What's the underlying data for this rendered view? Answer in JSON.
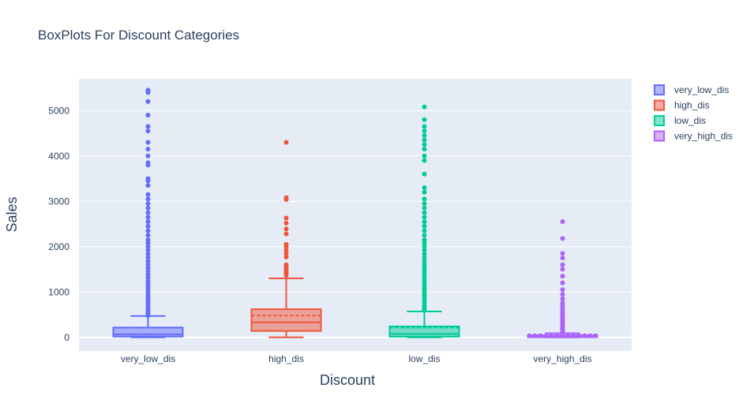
{
  "chart_data": {
    "type": "box",
    "title": "BoxPlots For Discount Categories",
    "xlabel": "Discount",
    "ylabel": "Sales",
    "ylim": [
      -300,
      5700
    ],
    "yticks": [
      0,
      1000,
      2000,
      3000,
      4000,
      5000
    ],
    "ytick_labels": [
      "0",
      "1000",
      "2000",
      "3000",
      "4000",
      "5000"
    ],
    "grid": true,
    "legend_position": "top-right",
    "categories": [
      "very_low_dis",
      "high_dis",
      "low_dis",
      "very_high_dis"
    ],
    "series": [
      {
        "name": "very_low_dis",
        "color": "#636efa",
        "min": 0,
        "q1": 17,
        "median": 65,
        "q3": 215,
        "upper_fence": 470,
        "mean": 215,
        "outliers": [
          480,
          520,
          560,
          600,
          650,
          700,
          760,
          820,
          880,
          940,
          1000,
          1060,
          1120,
          1180,
          1250,
          1320,
          1390,
          1460,
          1530,
          1600,
          1680,
          1760,
          1840,
          1920,
          2000,
          2080,
          2150,
          2250,
          2350,
          2450,
          2550,
          2650,
          2750,
          2850,
          2950,
          3050,
          3150,
          3350,
          3450,
          3500,
          3800,
          3850,
          4000,
          4150,
          4300,
          4550,
          4650,
          4900,
          5200,
          5400,
          5430,
          5450
        ]
      },
      {
        "name": "high_dis",
        "color": "#ef553b",
        "min": 0,
        "q1": 140,
        "median": 330,
        "q3": 620,
        "upper_fence": 1300,
        "mean": 480,
        "outliers": [
          1370,
          1420,
          1460,
          1500,
          1550,
          1600,
          1770,
          1850,
          1920,
          2000,
          2050,
          2280,
          2390,
          2520,
          2630,
          3040,
          3080,
          4300
        ]
      },
      {
        "name": "low_dis",
        "color": "#00cc96",
        "min": 0,
        "q1": 15,
        "median": 75,
        "q3": 240,
        "upper_fence": 570,
        "mean": 215,
        "outliers": [
          600,
          650,
          700,
          760,
          820,
          880,
          940,
          1000,
          1060,
          1120,
          1180,
          1250,
          1320,
          1390,
          1460,
          1530,
          1600,
          1680,
          1760,
          1840,
          1920,
          2000,
          2080,
          2150,
          2250,
          2350,
          2450,
          2550,
          2650,
          2750,
          2850,
          2950,
          3050,
          3200,
          3300,
          3600,
          3900,
          4000,
          4150,
          4250,
          4350,
          4450,
          4550,
          4650,
          4800,
          5080
        ]
      },
      {
        "name": "very_high_dis",
        "color": "#ab63fa",
        "min": 0,
        "q1": 3,
        "median": 12,
        "q3": 45,
        "upper_fence": 90,
        "mean": 65,
        "outliers": [
          100,
          130,
          160,
          190,
          220,
          260,
          300,
          340,
          380,
          420,
          460,
          500,
          550,
          600,
          650,
          700,
          760,
          850,
          950,
          1050,
          1200,
          1350,
          1500,
          1600,
          1750,
          1850,
          2180,
          2550
        ]
      }
    ]
  }
}
